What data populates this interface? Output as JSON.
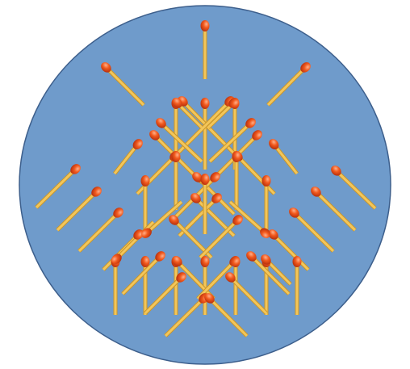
{
  "puzzle": {
    "board_shape": "circle",
    "board_color": "#6f9bcb",
    "board_edge_color": "#3d5f8c",
    "piece_type": "matchstick",
    "stick_color": "#f3c65a",
    "stick_edge_color": "#c9962a",
    "head_color": "#f25a1e",
    "head_highlight": "#ffb08a",
    "match_count": 56
  }
}
